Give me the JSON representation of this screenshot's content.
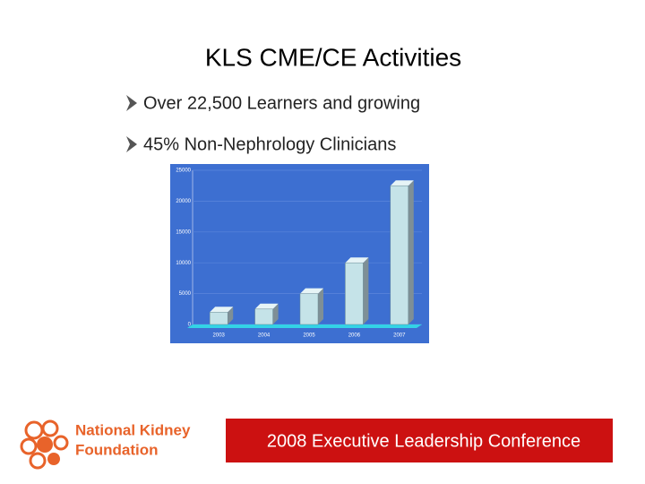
{
  "slide": {
    "title": "KLS CME/CE Activities",
    "bullets": [
      "Over 22,500 Learners and growing",
      "45% Non-Nephrology Clinicians"
    ],
    "logo": [
      "National Kidney",
      "Foundation"
    ],
    "footer": "2008 Executive Leadership Conference"
  },
  "chart_data": {
    "type": "bar3d",
    "categories": [
      "2003",
      "2004",
      "2005",
      "2006",
      "2007"
    ],
    "values": [
      2000,
      2500,
      5000,
      10000,
      22500
    ],
    "color": "#c5e3e8",
    "ylim": [
      0,
      25000
    ],
    "yticks": [
      0,
      5000,
      10000,
      15000,
      20000,
      25000
    ],
    "grid": true
  }
}
